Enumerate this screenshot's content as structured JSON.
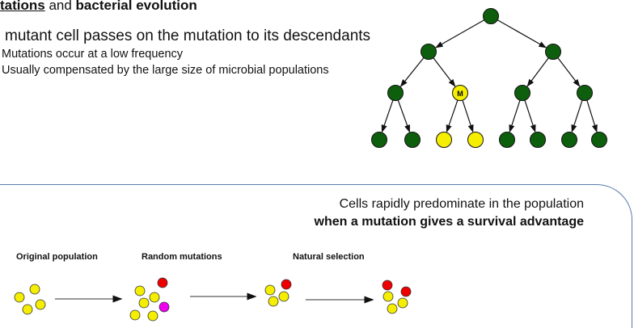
{
  "heading": {
    "part1": "tations",
    "part2": " and ",
    "part3": "bacterial evolution"
  },
  "main_point": "mutant cell passes on the mutation to its descendants",
  "bullets": [
    "Mutations occur at a low frequency",
    "Usually compensated by the large size of microbial populations"
  ],
  "tree": {
    "mutant_label": "M",
    "colors": {
      "normal": "#0d5f0d",
      "mutant": "#f5ee00"
    }
  },
  "box": {
    "line1": "Cells rapidly predominate in the population",
    "line2": "when a mutation gives a survival advantage"
  },
  "selection_diagram": {
    "labels": [
      "Original population",
      "Random mutations",
      "Natural selection"
    ],
    "colors": {
      "normal": "#f5ee00",
      "advantaged": "#ee0000",
      "other_mutant": "#ee00ee"
    }
  }
}
